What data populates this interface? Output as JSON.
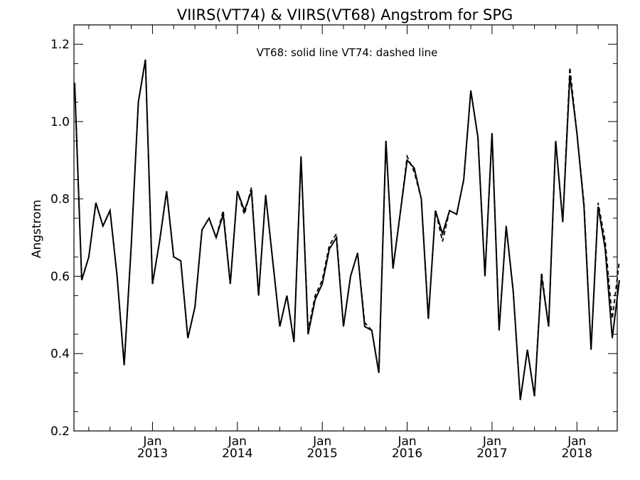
{
  "chart_data": {
    "type": "line",
    "title": "VIIRS(VT74) & VIIRS(VT68)  Angstrom for SPG",
    "ylabel": "Angstrom",
    "xlabel": "",
    "note": "VT68: solid line   VT74: dashed line",
    "ylim": [
      0.2,
      1.25
    ],
    "xlim": [
      "2012-02",
      "2018-07"
    ],
    "grid": false,
    "yticks": [
      {
        "value": 0.2,
        "label": "0.2"
      },
      {
        "value": 0.4,
        "label": "0.4"
      },
      {
        "value": 0.6,
        "label": "0.6"
      },
      {
        "value": 0.8,
        "label": "0.8"
      },
      {
        "value": 1.0,
        "label": "1.0"
      },
      {
        "value": 1.2,
        "label": "1.2"
      }
    ],
    "xticks": [
      {
        "value": "2013-01",
        "month": "Jan",
        "year": "2013"
      },
      {
        "value": "2014-01",
        "month": "Jan",
        "year": "2014"
      },
      {
        "value": "2015-01",
        "month": "Jan",
        "year": "2015"
      },
      {
        "value": "2016-01",
        "month": "Jan",
        "year": "2016"
      },
      {
        "value": "2017-01",
        "month": "Jan",
        "year": "2017"
      },
      {
        "value": "2018-01",
        "month": "Jan",
        "year": "2018"
      }
    ],
    "x": [
      "2012-02",
      "2012-03",
      "2012-04",
      "2012-05",
      "2012-06",
      "2012-07",
      "2012-08",
      "2012-09",
      "2012-10",
      "2012-11",
      "2012-12",
      "2013-01",
      "2013-02",
      "2013-03",
      "2013-04",
      "2013-05",
      "2013-06",
      "2013-07",
      "2013-08",
      "2013-09",
      "2013-10",
      "2013-11",
      "2013-12",
      "2014-01",
      "2014-02",
      "2014-03",
      "2014-04",
      "2014-05",
      "2014-06",
      "2014-07",
      "2014-08",
      "2014-09",
      "2014-10",
      "2014-11",
      "2014-12",
      "2015-01",
      "2015-02",
      "2015-03",
      "2015-04",
      "2015-05",
      "2015-06",
      "2015-07",
      "2015-08",
      "2015-09",
      "2015-10",
      "2015-11",
      "2015-12",
      "2016-01",
      "2016-02",
      "2016-03",
      "2016-04",
      "2016-05",
      "2016-06",
      "2016-07",
      "2016-08",
      "2016-09",
      "2016-10",
      "2016-11",
      "2016-12",
      "2017-01",
      "2017-02",
      "2017-03",
      "2017-04",
      "2017-05",
      "2017-06",
      "2017-07",
      "2017-08",
      "2017-09",
      "2017-10",
      "2017-11",
      "2017-12",
      "2018-01",
      "2018-02",
      "2018-03",
      "2018-04",
      "2018-05",
      "2018-06",
      "2018-07"
    ],
    "series": [
      {
        "name": "VT68",
        "style": "solid",
        "color": "#000000",
        "values": [
          1.1,
          0.59,
          0.65,
          0.79,
          0.73,
          0.77,
          0.6,
          0.37,
          0.68,
          1.05,
          1.16,
          0.58,
          0.69,
          0.82,
          0.65,
          0.64,
          0.44,
          0.52,
          0.72,
          0.75,
          0.7,
          0.76,
          0.58,
          0.82,
          0.77,
          0.82,
          0.55,
          0.81,
          0.64,
          0.47,
          0.55,
          0.43,
          0.91,
          0.45,
          0.54,
          0.58,
          0.67,
          0.7,
          0.47,
          0.6,
          0.66,
          0.47,
          0.46,
          0.35,
          0.95,
          0.62,
          0.76,
          0.9,
          0.88,
          0.8,
          0.49,
          0.77,
          0.71,
          0.77,
          0.76,
          0.85,
          1.08,
          0.96,
          0.6,
          0.97,
          0.46,
          0.73,
          0.56,
          0.28,
          0.41,
          0.29,
          0.6,
          0.47,
          0.95,
          0.74,
          1.12,
          0.97,
          0.78,
          0.41,
          0.78,
          0.67,
          0.44,
          0.59
        ]
      },
      {
        "name": "VT74",
        "style": "dashed",
        "color": "#000000",
        "values": [
          1.1,
          0.59,
          0.65,
          0.79,
          0.73,
          0.77,
          0.6,
          0.37,
          0.68,
          1.05,
          1.16,
          0.58,
          0.69,
          0.82,
          0.65,
          0.64,
          0.44,
          0.52,
          0.72,
          0.75,
          0.7,
          0.77,
          0.58,
          0.82,
          0.76,
          0.83,
          0.55,
          0.81,
          0.64,
          0.47,
          0.55,
          0.43,
          0.91,
          0.46,
          0.55,
          0.59,
          0.68,
          0.71,
          0.47,
          0.6,
          0.66,
          0.48,
          0.46,
          0.35,
          0.95,
          0.62,
          0.76,
          0.91,
          0.87,
          0.8,
          0.49,
          0.77,
          0.69,
          0.77,
          0.76,
          0.85,
          1.08,
          0.96,
          0.6,
          0.97,
          0.46,
          0.73,
          0.56,
          0.28,
          0.41,
          0.29,
          0.61,
          0.47,
          0.95,
          0.74,
          1.14,
          0.97,
          0.79,
          0.41,
          0.79,
          0.69,
          0.49,
          0.64
        ]
      }
    ]
  }
}
